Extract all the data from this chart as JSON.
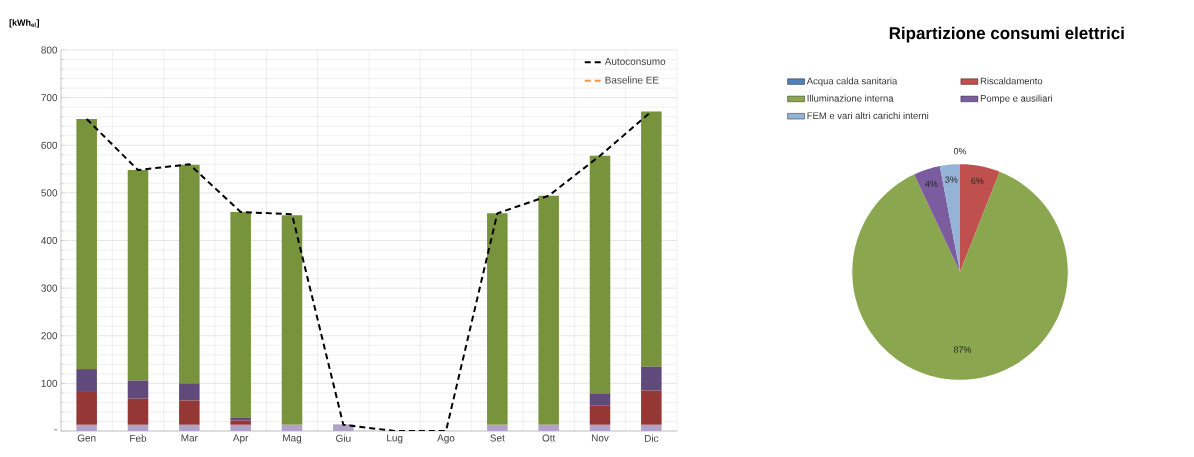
{
  "chart_data": [
    {
      "type": "bar",
      "stacked": true,
      "ylabel": "[kWh$_{el}$]",
      "categories": [
        "Gen",
        "Feb",
        "Mar",
        "Apr",
        "Mag",
        "Giu",
        "Lug",
        "Ago",
        "Set",
        "Ott",
        "Nov",
        "Dic"
      ],
      "ylim": [
        0,
        800
      ],
      "yticks": [
        {
          "value": 0,
          "label": "-"
        },
        100,
        200,
        300,
        400,
        500,
        600,
        700,
        800
      ],
      "grid": true,
      "legend": "top right",
      "line_style": "dashed",
      "series": [
        {
          "color": "#b3a2c7",
          "values": [
            13,
            13,
            13,
            13,
            13,
            14,
            0,
            0,
            13,
            13,
            13,
            13
          ]
        },
        {
          "color": "#953735",
          "values": [
            69,
            55,
            51,
            9,
            0,
            0,
            0,
            0,
            0,
            0,
            40,
            72
          ]
        },
        {
          "color": "#604a7b",
          "values": [
            48,
            38,
            36,
            6,
            0,
            0,
            0,
            0,
            0,
            0,
            26,
            50
          ]
        },
        {
          "color": "#77933c",
          "values": [
            525,
            442,
            459,
            432,
            440,
            0,
            0,
            0,
            444,
            481,
            499,
            536
          ]
        },
        {
          "name": "Autoconsumo",
          "type": "line",
          "color": "#000000",
          "values": [
            655,
            548,
            560,
            460,
            455,
            13,
            0,
            0,
            457,
            494,
            578,
            671
          ]
        },
        {
          "name": "Baseline EE",
          "type": "line",
          "color": "#f79646",
          "values": [
            null,
            null,
            null,
            null,
            null,
            null,
            null,
            null,
            null,
            null,
            null,
            null
          ]
        }
      ]
    },
    {
      "type": "pie",
      "title": "Ripartizione consumi elettrici",
      "categories": [
        "Acqua calda sanitaria",
        "Riscaldamento",
        "Illuminazione interna",
        "Pompe e ausiliari",
        "FEM e vari altri carichi interni"
      ],
      "values": [
        0,
        6,
        87,
        4,
        3
      ],
      "colors": [
        "#4f81bd",
        "#c0504d",
        "#8aa64e",
        "#7b5c9e",
        "#95b3d7"
      ],
      "value_labels": [
        "0%",
        "6%",
        "87%",
        "4%",
        "3%"
      ],
      "legend": "top"
    }
  ]
}
